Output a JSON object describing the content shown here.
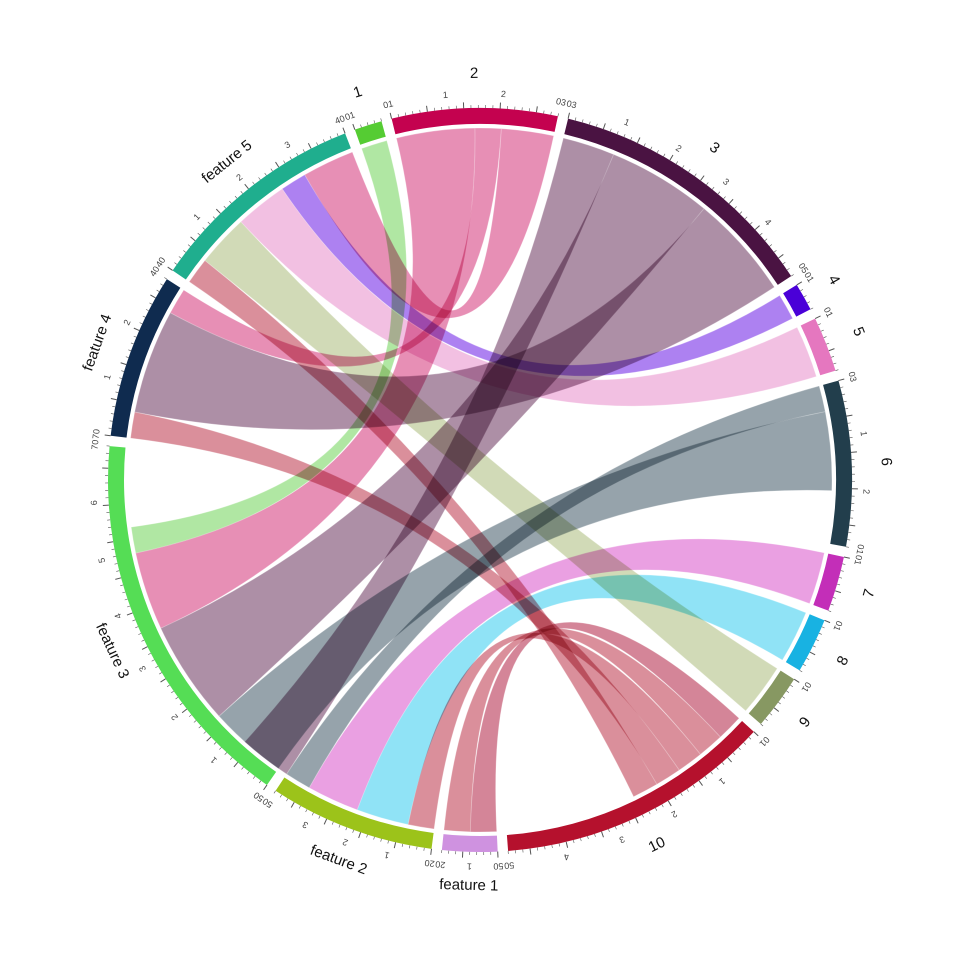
{
  "chart_data": {
    "type": "chord",
    "title": "",
    "sectors": [
      {
        "id": "feature1",
        "label": "feature 1",
        "color": "#cf92e0",
        "total": 1.0,
        "tick_labels": [
          "50",
          "1",
          "20"
        ]
      },
      {
        "id": "feature2",
        "label": "feature 2",
        "color": "#9cc31a",
        "total": 3.0,
        "tick_labels": [
          "20",
          "1",
          "2",
          "3",
          "50"
        ]
      },
      {
        "id": "feature3",
        "label": "feature 3",
        "color": "#55dd55",
        "total": 7.0,
        "tick_labels": [
          "50",
          "1",
          "2",
          "3",
          "4",
          "5",
          "6",
          "70"
        ]
      },
      {
        "id": "feature4",
        "label": "feature 4",
        "color": "#0f2b4f",
        "total": 3.0,
        "tick_labels": [
          "70",
          "1",
          "2",
          "40"
        ]
      },
      {
        "id": "feature5",
        "label": "feature 5",
        "color": "#1fae8e",
        "total": 4.0,
        "tick_labels": [
          "40",
          "1",
          "2",
          "3",
          "40"
        ]
      },
      {
        "id": "s1",
        "label": "1",
        "color": "#55cc33",
        "total": 0.5,
        "tick_labels": [
          "01"
        ]
      },
      {
        "id": "s2",
        "label": "2",
        "color": "#c4024f",
        "total": 3.0,
        "tick_labels": [
          "01",
          "1",
          "2",
          "03"
        ]
      },
      {
        "id": "s3",
        "label": "3",
        "color": "#4a1342",
        "total": 5.0,
        "tick_labels": [
          "03",
          "1",
          "2",
          "3",
          "4",
          "05"
        ]
      },
      {
        "id": "s4",
        "label": "4",
        "color": "#4a00d8",
        "total": 0.5,
        "tick_labels": [
          "01"
        ]
      },
      {
        "id": "s5",
        "label": "5",
        "color": "#e577bf",
        "total": 1.0,
        "tick_labels": [
          "01"
        ]
      },
      {
        "id": "s6",
        "label": "6",
        "color": "#223e4c",
        "total": 3.0,
        "tick_labels": [
          "03",
          "1",
          "2",
          "01"
        ]
      },
      {
        "id": "s7",
        "label": "7",
        "color": "#c32eb8",
        "total": 1.0,
        "tick_labels": [
          "01"
        ]
      },
      {
        "id": "s8",
        "label": "8",
        "color": "#18b2e2",
        "total": 1.0,
        "tick_labels": [
          "01"
        ]
      },
      {
        "id": "s9",
        "label": "9",
        "color": "#879862",
        "total": 1.0,
        "tick_labels": [
          "01"
        ]
      },
      {
        "id": "s10",
        "label": "10",
        "color": "#b5112d",
        "total": 5.0,
        "tick_labels": [
          "01",
          "1",
          "2",
          "3",
          "4",
          "50"
        ]
      }
    ],
    "links": [
      {
        "source": "s10",
        "target": "feature1",
        "value": 0.5,
        "color": "#b93a58"
      },
      {
        "source": "s10",
        "target": "feature1",
        "value": 0.5,
        "color": "#c44b5e"
      },
      {
        "source": "s10",
        "target": "feature2",
        "value": 0.5,
        "color": "#c44b5e"
      },
      {
        "source": "s10",
        "target": "feature4",
        "value": 0.5,
        "color": "#c44b5e"
      },
      {
        "source": "s10",
        "target": "feature5",
        "value": 0.5,
        "color": "#c44b5e"
      },
      {
        "source": "s9",
        "target": "feature5",
        "value": 1.0,
        "color": "#b4c48a"
      },
      {
        "source": "s8",
        "target": "feature2",
        "value": 1.0,
        "color": "#4cd2f0"
      },
      {
        "source": "s7",
        "target": "feature2",
        "value": 1.0,
        "color": "#dd66d0"
      },
      {
        "source": "s6",
        "target": "feature2",
        "value": 0.5,
        "color": "#556b78"
      },
      {
        "source": "s6",
        "target": "feature3",
        "value": 1.5,
        "color": "#556b78"
      },
      {
        "source": "s5",
        "target": "feature5",
        "value": 1.0,
        "color": "#ea9ad0"
      },
      {
        "source": "s4",
        "target": "feature5",
        "value": 0.5,
        "color": "#7a33e8"
      },
      {
        "source": "s3",
        "target": "feature2",
        "value": 1.0,
        "color": "#7a4a70"
      },
      {
        "source": "s3",
        "target": "feature3",
        "value": 2.0,
        "color": "#7a4a70"
      },
      {
        "source": "s3",
        "target": "feature4",
        "value": 2.0,
        "color": "#7a4a70"
      },
      {
        "source": "s2",
        "target": "feature3",
        "value": 1.5,
        "color": "#d94a88"
      },
      {
        "source": "s2",
        "target": "feature4",
        "value": 0.5,
        "color": "#d94a88"
      },
      {
        "source": "s2",
        "target": "feature5",
        "value": 1.0,
        "color": "#d94a88"
      },
      {
        "source": "s1",
        "target": "feature3",
        "value": 0.5,
        "color": "#7fd96a"
      }
    ]
  }
}
